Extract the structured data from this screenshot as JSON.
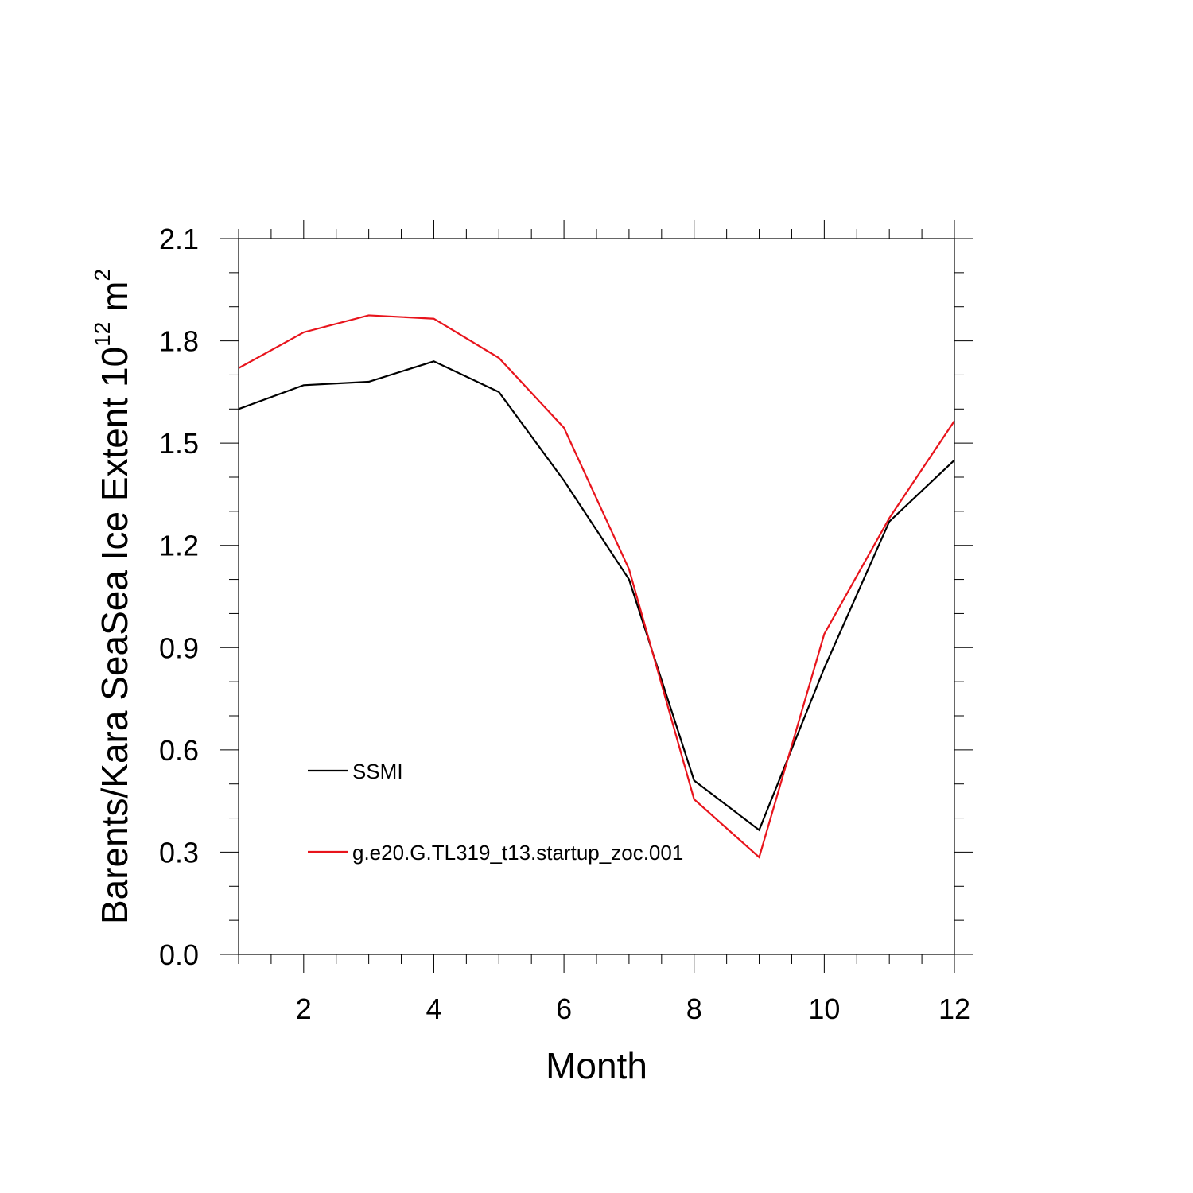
{
  "chart_data": {
    "type": "line",
    "x": [
      1,
      2,
      3,
      4,
      5,
      6,
      7,
      8,
      9,
      10,
      11,
      12
    ],
    "series": [
      {
        "name": "SSMI",
        "color": "#000000",
        "values": [
          1.6,
          1.67,
          1.68,
          1.74,
          1.65,
          1.39,
          1.1,
          0.51,
          0.365,
          0.84,
          1.27,
          1.45
        ]
      },
      {
        "name": "g.e20.G.TL319_t13.startup_zoc.001",
        "color": "#e8141c",
        "values": [
          1.72,
          1.825,
          1.875,
          1.865,
          1.75,
          1.545,
          1.13,
          0.455,
          0.285,
          0.94,
          1.28,
          1.565
        ]
      }
    ],
    "xlabel": "Month",
    "ylabel": {
      "prefix": "Barents/Kara SeaSea Ice Extent 10",
      "exponent1": "12",
      "unit": " m",
      "exponent2": "2"
    },
    "xlim": [
      1,
      12
    ],
    "ylim": [
      0.0,
      2.1
    ],
    "x_ticks": [
      2,
      4,
      6,
      8,
      10,
      12
    ],
    "x_tick_labels": [
      "2",
      "4",
      "6",
      "8",
      "10",
      "12"
    ],
    "y_ticks": [
      0.0,
      0.3,
      0.6,
      0.9,
      1.2,
      1.5,
      1.8,
      2.1
    ],
    "y_tick_labels": [
      "0.0",
      "0.3",
      "0.6",
      "0.9",
      "1.2",
      "1.5",
      "1.8",
      "2.1"
    ],
    "grid": false,
    "legend_position": "bottom-left inside plot"
  }
}
